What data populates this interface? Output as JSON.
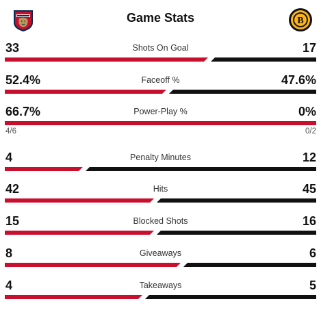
{
  "header": {
    "title": "Game Stats",
    "home_team": {
      "name": "Florida Panthers",
      "logo_icon": "panthers-logo",
      "color": "#c8102e"
    },
    "away_team": {
      "name": "Boston Bruins",
      "logo_icon": "bruins-logo",
      "color": "#111111"
    }
  },
  "stats": [
    {
      "label": "Shots On Goal",
      "home": "33",
      "away": "17",
      "home_share": 0.66
    },
    {
      "label": "Faceoff %",
      "home": "52.4%",
      "away": "47.6%",
      "home_share": 0.524
    },
    {
      "label": "Power-Play %",
      "home": "66.7%",
      "away": "0%",
      "home_share": 1.0,
      "home_sub": "4/6",
      "away_sub": "0/2"
    },
    {
      "label": "Penalty Minutes",
      "home": "4",
      "away": "12",
      "home_share": 0.25
    },
    {
      "label": "Hits",
      "home": "42",
      "away": "45",
      "home_share": 0.4828
    },
    {
      "label": "Blocked Shots",
      "home": "15",
      "away": "16",
      "home_share": 0.4839
    },
    {
      "label": "Giveaways",
      "home": "8",
      "away": "6",
      "home_share": 0.5714
    },
    {
      "label": "Takeaways",
      "home": "4",
      "away": "5",
      "home_share": 0.4444
    }
  ]
}
